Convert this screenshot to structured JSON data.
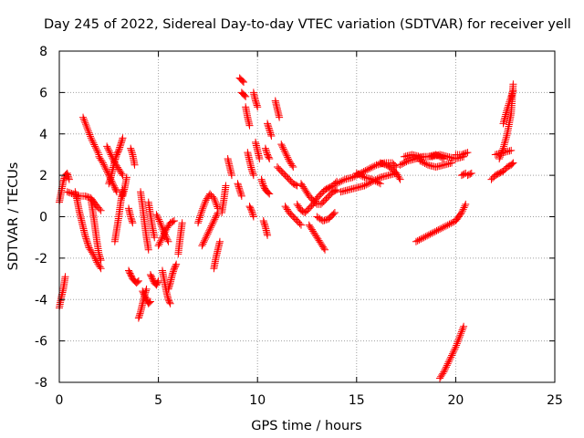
{
  "chart_data": {
    "type": "scatter",
    "title": "Day 245 of 2022, Sidereal Day-to-day VTEC variation (SDTVAR) for receiver yell",
    "xlabel": "GPS time / hours",
    "ylabel": "SDTVAR / TECUs",
    "xlim": [
      0,
      25
    ],
    "ylim": [
      -8,
      8
    ],
    "x_ticks": [
      0,
      5,
      10,
      15,
      20,
      25
    ],
    "y_ticks": [
      -8,
      -6,
      -4,
      -2,
      0,
      2,
      4,
      6,
      8
    ],
    "grid": true,
    "marker": "+",
    "series": [
      {
        "name": "SDTVAR",
        "color": "#ff0000",
        "segments": [
          {
            "x": [
              0.0,
              0.1,
              0.2,
              0.3
            ],
            "y": [
              -4.4,
              -3.9,
              -3.5,
              -2.9
            ]
          },
          {
            "x": [
              0.0,
              0.1,
              0.2,
              0.3,
              0.4,
              0.5
            ],
            "y": [
              0.7,
              1.2,
              1.7,
              2.0,
              2.1,
              1.8
            ]
          },
          {
            "x": [
              0.4,
              0.7,
              1.0,
              1.3,
              1.6,
              1.9,
              2.1
            ],
            "y": [
              1.2,
              1.1,
              1.0,
              1.0,
              0.9,
              0.5,
              0.3
            ]
          },
          {
            "x": [
              0.8,
              0.9,
              1.0,
              1.1,
              1.2,
              1.3,
              1.4,
              1.5,
              1.7,
              1.9,
              2.1
            ],
            "y": [
              1.2,
              0.8,
              0.3,
              -0.1,
              -0.5,
              -0.9,
              -1.2,
              -1.5,
              -1.8,
              -2.2,
              -2.5
            ]
          },
          {
            "x": [
              1.6,
              1.7,
              1.8,
              1.9,
              2.0,
              2.1
            ],
            "y": [
              0.8,
              0.2,
              -0.5,
              -1.2,
              -1.8,
              -2.1
            ]
          },
          {
            "x": [
              1.2,
              1.4,
              1.6,
              1.8,
              2.0
            ],
            "y": [
              4.8,
              4.3,
              3.8,
              3.4,
              3.0
            ]
          },
          {
            "x": [
              2.0,
              2.2,
              2.4,
              2.6,
              2.8,
              2.9
            ],
            "y": [
              2.9,
              2.6,
              2.2,
              1.8,
              1.4,
              1.2
            ]
          },
          {
            "x": [
              2.4,
              2.6,
              2.8,
              3.0,
              3.2
            ],
            "y": [
              3.4,
              3.0,
              2.6,
              2.3,
              2.0
            ]
          },
          {
            "x": [
              2.5,
              2.6,
              2.7,
              2.8,
              2.9,
              3.0,
              3.1,
              3.2
            ],
            "y": [
              1.6,
              1.9,
              2.3,
              2.7,
              3.0,
              3.2,
              3.5,
              3.8
            ]
          },
          {
            "x": [
              2.8,
              2.9,
              3.0,
              3.1,
              3.2
            ],
            "y": [
              -1.2,
              -0.6,
              0.0,
              0.7,
              1.3
            ]
          },
          {
            "x": [
              3.2,
              3.3,
              3.4
            ],
            "y": [
              1.0,
              1.4,
              1.9
            ]
          },
          {
            "x": [
              3.5,
              3.6,
              3.7
            ],
            "y": [
              0.4,
              0.0,
              -0.3
            ]
          },
          {
            "x": [
              3.5,
              3.6,
              3.7,
              3.8,
              3.9,
              4.0
            ],
            "y": [
              -2.6,
              -2.8,
              -3.0,
              -3.1,
              -3.2,
              -3.1
            ]
          },
          {
            "x": [
              3.6,
              3.7,
              3.8
            ],
            "y": [
              3.3,
              3.0,
              2.5
            ]
          },
          {
            "x": [
              4.0,
              4.1,
              4.2,
              4.3,
              4.4
            ],
            "y": [
              -4.9,
              -4.6,
              -4.2,
              -3.8,
              -3.5
            ]
          },
          {
            "x": [
              4.2,
              4.3,
              4.4,
              4.5,
              4.6
            ],
            "y": [
              -3.6,
              -3.8,
              -4.0,
              -4.2,
              -4.1
            ]
          },
          {
            "x": [
              4.1,
              4.2,
              4.3,
              4.4,
              4.5
            ],
            "y": [
              1.2,
              0.5,
              -0.3,
              -1.0,
              -1.6
            ]
          },
          {
            "x": [
              4.5,
              4.6,
              4.7,
              4.8
            ],
            "y": [
              0.7,
              0.1,
              -0.5,
              -1.0
            ]
          },
          {
            "x": [
              4.6,
              4.7,
              4.8,
              4.9,
              5.0
            ],
            "y": [
              -2.8,
              -3.0,
              -3.2,
              -3.3,
              -3.1
            ]
          },
          {
            "x": [
              4.9,
              5.1,
              5.3,
              5.5
            ],
            "y": [
              0.1,
              -0.3,
              -0.8,
              -1.2
            ]
          },
          {
            "x": [
              5.0,
              5.2,
              5.4,
              5.6,
              5.8
            ],
            "y": [
              -1.4,
              -1.0,
              -0.6,
              -0.3,
              -0.2
            ]
          },
          {
            "x": [
              5.2,
              5.3,
              5.4,
              5.5,
              5.6
            ],
            "y": [
              -2.6,
              -3.1,
              -3.6,
              -4.0,
              -4.2
            ]
          },
          {
            "x": [
              5.5,
              5.6,
              5.7,
              5.8,
              5.9
            ],
            "y": [
              -3.5,
              -3.2,
              -2.8,
              -2.5,
              -2.3
            ]
          },
          {
            "x": [
              6.0,
              6.1,
              6.2
            ],
            "y": [
              -1.8,
              -1.0,
              -0.3
            ]
          },
          {
            "x": [
              7.0,
              7.2,
              7.4,
              7.6,
              7.8,
              8.0
            ],
            "y": [
              -0.3,
              0.3,
              0.8,
              1.1,
              0.9,
              0.4
            ]
          },
          {
            "x": [
              7.2,
              7.4,
              7.6,
              7.8,
              8.0
            ],
            "y": [
              -1.4,
              -1.0,
              -0.6,
              -0.2,
              0.2
            ]
          },
          {
            "x": [
              7.8,
              7.9,
              8.0,
              8.1
            ],
            "y": [
              -2.5,
              -2.0,
              -1.6,
              -1.2
            ]
          },
          {
            "x": [
              8.2,
              8.3,
              8.4
            ],
            "y": [
              0.2,
              0.8,
              1.5
            ]
          },
          {
            "x": [
              8.5,
              8.6,
              8.7
            ],
            "y": [
              2.8,
              2.4,
              2.0
            ]
          },
          {
            "x": [
              9.0,
              9.1,
              9.2
            ],
            "y": [
              1.6,
              1.3,
              1.0
            ]
          },
          {
            "x": [
              9.1,
              9.2,
              9.3
            ],
            "y": [
              6.7,
              6.6,
              6.5
            ]
          },
          {
            "x": [
              9.2,
              9.3,
              9.4
            ],
            "y": [
              6.0,
              5.9,
              5.8
            ]
          },
          {
            "x": [
              9.4,
              9.5,
              9.6
            ],
            "y": [
              5.3,
              4.8,
              4.4
            ]
          },
          {
            "x": [
              9.5,
              9.6,
              9.7,
              9.8
            ],
            "y": [
              3.1,
              2.7,
              2.3,
              2.0
            ]
          },
          {
            "x": [
              9.6,
              9.7,
              9.8
            ],
            "y": [
              0.5,
              0.3,
              0.0
            ]
          },
          {
            "x": [
              9.8,
              9.9,
              10.0
            ],
            "y": [
              6.0,
              5.6,
              5.3
            ]
          },
          {
            "x": [
              9.9,
              10.0,
              10.1
            ],
            "y": [
              3.6,
              3.2,
              2.8
            ]
          },
          {
            "x": [
              10.2,
              10.3,
              10.4,
              10.5,
              10.6
            ],
            "y": [
              1.8,
              1.5,
              1.3,
              1.2,
              1.1
            ]
          },
          {
            "x": [
              10.4,
              10.5,
              10.6
            ],
            "y": [
              3.3,
              3.0,
              2.8
            ]
          },
          {
            "x": [
              10.5,
              10.6,
              10.7
            ],
            "y": [
              4.5,
              4.2,
              3.9
            ]
          },
          {
            "x": [
              10.3,
              10.4,
              10.5
            ],
            "y": [
              -0.2,
              -0.5,
              -0.9
            ]
          },
          {
            "x": [
              10.9,
              11.0,
              11.1
            ],
            "y": [
              5.6,
              5.2,
              4.8
            ]
          },
          {
            "x": [
              11.0,
              11.2,
              11.4,
              11.6,
              11.8,
              12.0
            ],
            "y": [
              2.4,
              2.2,
              2.0,
              1.8,
              1.6,
              1.5
            ]
          },
          {
            "x": [
              11.2,
              11.4,
              11.6,
              11.8
            ],
            "y": [
              3.5,
              3.1,
              2.7,
              2.4
            ]
          },
          {
            "x": [
              11.4,
              11.6,
              11.8,
              12.0,
              12.2
            ],
            "y": [
              0.5,
              0.2,
              0.0,
              -0.2,
              -0.4
            ]
          },
          {
            "x": [
              12.0,
              12.2,
              12.4,
              12.6,
              12.8,
              13.0,
              13.2,
              13.4,
              13.6,
              13.8,
              14.0
            ],
            "y": [
              0.6,
              0.3,
              0.2,
              0.4,
              0.6,
              0.9,
              1.1,
              1.3,
              1.4,
              1.5,
              1.7
            ]
          },
          {
            "x": [
              12.2,
              12.4,
              12.6,
              12.8,
              13.0,
              13.2,
              13.4,
              13.6,
              13.8,
              14.0
            ],
            "y": [
              1.6,
              1.3,
              1.0,
              0.8,
              0.6,
              0.6,
              0.8,
              1.0,
              1.2,
              1.3
            ]
          },
          {
            "x": [
              12.6,
              12.8,
              13.0,
              13.2,
              13.4
            ],
            "y": [
              -0.4,
              -0.7,
              -1.0,
              -1.3,
              -1.6
            ]
          },
          {
            "x": [
              13.0,
              13.3,
              13.6,
              13.9
            ],
            "y": [
              0.0,
              -0.2,
              -0.1,
              0.2
            ]
          },
          {
            "x": [
              14.0,
              14.4,
              14.8,
              15.2,
              15.6,
              16.0,
              16.4,
              16.8,
              17.0
            ],
            "y": [
              1.6,
              1.8,
              1.9,
              2.1,
              2.3,
              2.5,
              2.6,
              2.6,
              2.4
            ]
          },
          {
            "x": [
              14.2,
              14.6,
              15.0,
              15.4,
              15.8,
              16.2,
              16.6,
              17.0
            ],
            "y": [
              1.2,
              1.3,
              1.4,
              1.5,
              1.7,
              1.9,
              2.0,
              2.1
            ]
          },
          {
            "x": [
              15.0,
              15.4,
              15.8,
              16.2
            ],
            "y": [
              2.1,
              1.9,
              1.8,
              1.6
            ]
          },
          {
            "x": [
              16.2,
              16.5,
              16.8,
              17.0
            ],
            "y": [
              2.6,
              2.5,
              2.3,
              2.1
            ]
          },
          {
            "x": [
              17.0,
              17.2
            ],
            "y": [
              2.1,
              1.8
            ]
          },
          {
            "x": [
              17.2,
              17.6,
              18.0,
              18.4,
              18.8,
              19.2,
              19.6,
              20.0,
              20.4
            ],
            "y": [
              2.5,
              2.7,
              2.8,
              2.9,
              2.9,
              3.0,
              2.9,
              2.8,
              2.9
            ]
          },
          {
            "x": [
              17.4,
              17.8,
              18.2,
              18.6,
              19.0,
              19.4
            ],
            "y": [
              2.9,
              3.0,
              2.9,
              2.9,
              3.0,
              2.8
            ]
          },
          {
            "x": [
              18.2,
              18.6,
              19.0,
              19.4,
              19.8
            ],
            "y": [
              2.7,
              2.5,
              2.4,
              2.5,
              2.6
            ]
          },
          {
            "x": [
              20.0,
              20.3,
              20.6
            ],
            "y": [
              3.0,
              3.0,
              3.1
            ]
          },
          {
            "x": [
              18.0,
              18.4,
              18.8,
              19.2,
              19.6,
              20.0,
              20.3,
              20.5
            ],
            "y": [
              -1.2,
              -1.0,
              -0.8,
              -0.6,
              -0.4,
              -0.2,
              0.2,
              0.6
            ]
          },
          {
            "x": [
              19.2,
              19.4,
              19.6,
              19.8,
              20.0,
              20.2,
              20.4
            ],
            "y": [
              -7.8,
              -7.5,
              -7.1,
              -6.7,
              -6.3,
              -5.8,
              -5.3
            ]
          },
          {
            "x": [
              20.3,
              20.5
            ],
            "y": [
              2.0,
              2.1
            ]
          },
          {
            "x": [
              20.6,
              20.8
            ],
            "y": [
              2.0,
              2.1
            ]
          },
          {
            "x": [
              21.8,
              22.0,
              22.2,
              22.4,
              22.6,
              22.8,
              22.9
            ],
            "y": [
              1.8,
              2.0,
              2.1,
              2.2,
              2.4,
              2.5,
              2.6
            ]
          },
          {
            "x": [
              22.0,
              22.4,
              22.8
            ],
            "y": [
              3.0,
              3.1,
              3.2
            ]
          },
          {
            "x": [
              22.2,
              22.4,
              22.6,
              22.8,
              22.9
            ],
            "y": [
              2.8,
              3.3,
              4.0,
              5.0,
              6.4
            ]
          },
          {
            "x": [
              22.4,
              22.6,
              22.8,
              22.9
            ],
            "y": [
              4.5,
              5.2,
              5.8,
              6.1
            ]
          }
        ]
      }
    ]
  }
}
